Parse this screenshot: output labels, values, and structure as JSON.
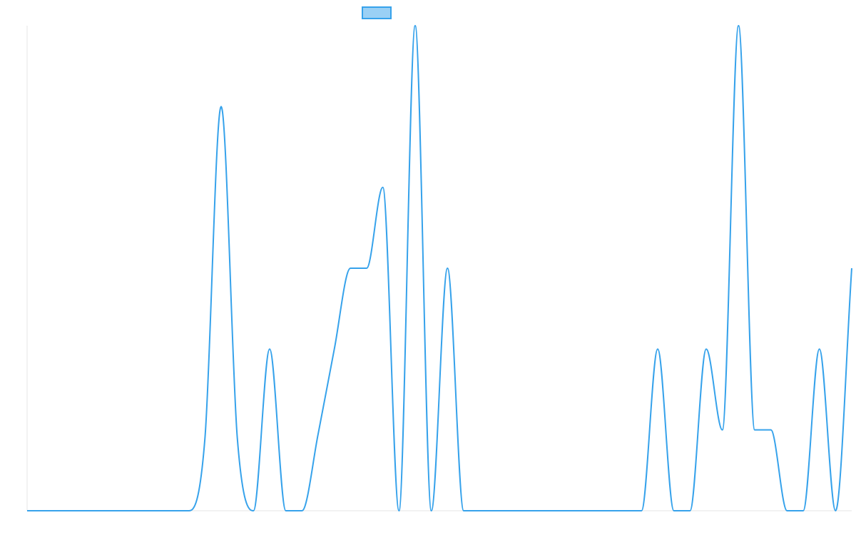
{
  "colors": {
    "series_line": "#36a2eb",
    "legend_fill": "#9ad0f5",
    "axis_line": "#e6e6e6"
  },
  "legend": {
    "label": "",
    "placement": "top-center"
  },
  "chart_data": {
    "type": "line",
    "title": "",
    "xlabel": "",
    "ylabel": "",
    "grid": false,
    "smooth": true,
    "legend": "top-center",
    "xlim": [
      0,
      51
    ],
    "ylim": [
      0,
      6
    ],
    "x": [
      0,
      1,
      2,
      3,
      4,
      5,
      6,
      7,
      8,
      9,
      10,
      11,
      12,
      13,
      14,
      15,
      16,
      17,
      18,
      19,
      20,
      21,
      22,
      23,
      24,
      25,
      26,
      27,
      28,
      29,
      30,
      31,
      32,
      33,
      34,
      35,
      36,
      37,
      38,
      39,
      40,
      41,
      42,
      43,
      44,
      45,
      46,
      47,
      48,
      49,
      50,
      51
    ],
    "series": [
      {
        "name": "",
        "values": [
          0,
          0,
          0,
          0,
          0,
          0,
          0,
          0,
          0,
          0,
          0,
          0.9,
          5,
          0.9,
          0,
          2,
          0,
          0,
          0.95,
          2,
          3,
          3,
          4,
          0,
          6,
          0,
          3,
          0,
          0,
          0,
          0,
          0,
          0,
          0,
          0,
          0,
          0,
          0,
          0,
          2,
          0,
          0,
          2,
          1,
          6,
          1,
          1,
          0,
          0,
          2,
          0,
          3
        ]
      }
    ]
  }
}
